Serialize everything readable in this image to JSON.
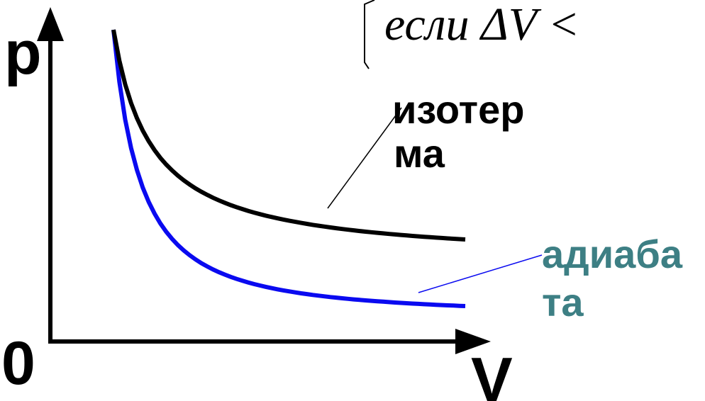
{
  "axes": {
    "y_label": "p",
    "x_label": "V",
    "origin_label": "0"
  },
  "formula": {
    "text": "если ΔV <"
  },
  "curves": {
    "isotherm": {
      "label_line1": "изотер",
      "label_line2": "ма",
      "color": "#000000",
      "label_color": "#000000"
    },
    "adiabat": {
      "label_line1": "адиаба",
      "label_line2": "та",
      "color": "#0a0af0",
      "label_color": "#3d7f84"
    }
  }
}
